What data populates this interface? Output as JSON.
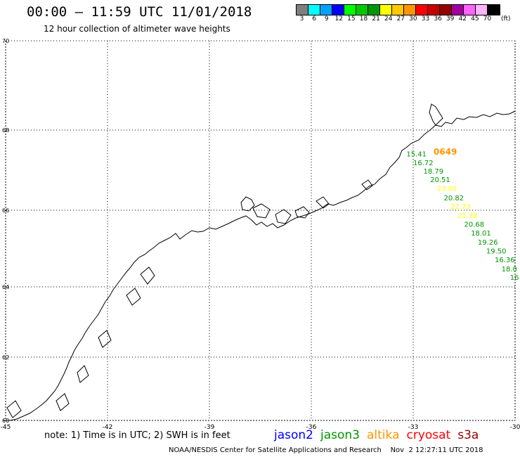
{
  "header": {
    "title": "00:00 – 11:59 UTC 11/01/2018",
    "subtitle": "12 hour collection of altimeter wave heights"
  },
  "legend": {
    "unit": "(ft)",
    "bins": [
      {
        "label": "3",
        "color": "#7f7f7f"
      },
      {
        "label": "6",
        "color": "#00ffff"
      },
      {
        "label": "9",
        "color": "#00a0ff"
      },
      {
        "label": "12",
        "color": "#0000ff"
      },
      {
        "label": "15",
        "color": "#00ff00"
      },
      {
        "label": "18",
        "color": "#00c800"
      },
      {
        "label": "21",
        "color": "#009600"
      },
      {
        "label": "24",
        "color": "#ffff00"
      },
      {
        "label": "27",
        "color": "#ffc800"
      },
      {
        "label": "30",
        "color": "#ff9600"
      },
      {
        "label": "33",
        "color": "#ff0000"
      },
      {
        "label": "36",
        "color": "#c80000"
      },
      {
        "label": "39",
        "color": "#960000"
      },
      {
        "label": "42",
        "color": "#a000a0"
      },
      {
        "label": "45",
        "color": "#ff64ff"
      },
      {
        "label": "70",
        "color": "#ffb4ff"
      },
      {
        "label": "",
        "color": "#000000"
      }
    ]
  },
  "map": {
    "lon_range": [
      -45,
      -30
    ],
    "lat_range": [
      60,
      70
    ],
    "lon_ticks": [
      "-45",
      "-42",
      "-39",
      "-36",
      "-33",
      "-30"
    ],
    "lat_ticks": [
      "60",
      "62",
      "64",
      "66",
      "68",
      "70"
    ],
    "time_label": {
      "text": "0649",
      "color": "#ff9600",
      "lon": -32.4,
      "lat": 67.0
    },
    "observations": [
      {
        "text": "15.41",
        "color": "#009600",
        "lon": -33.2,
        "lat": 66.95
      },
      {
        "text": "16.72",
        "color": "#009600",
        "lon": -33.0,
        "lat": 66.72
      },
      {
        "text": "18.79",
        "color": "#009600",
        "lon": -32.7,
        "lat": 66.5
      },
      {
        "text": "20.51",
        "color": "#009600",
        "lon": -32.5,
        "lat": 66.28
      },
      {
        "text": "23.01",
        "color": "#ffff00",
        "lon": -32.3,
        "lat": 66.05
      },
      {
        "text": "20.82",
        "color": "#009600",
        "lon": -32.1,
        "lat": 65.8
      },
      {
        "text": "22.73",
        "color": "#ffff00",
        "lon": -31.9,
        "lat": 65.57
      },
      {
        "text": "21.38",
        "color": "#ffff00",
        "lon": -31.7,
        "lat": 65.33
      },
      {
        "text": "20.68",
        "color": "#009600",
        "lon": -31.5,
        "lat": 65.1
      },
      {
        "text": "18.01",
        "color": "#009600",
        "lon": -31.3,
        "lat": 64.87
      },
      {
        "text": "19.26",
        "color": "#009600",
        "lon": -31.1,
        "lat": 64.63
      },
      {
        "text": "19.50",
        "color": "#009600",
        "lon": -30.85,
        "lat": 64.4
      },
      {
        "text": "16.36",
        "color": "#009600",
        "lon": -30.6,
        "lat": 64.17
      },
      {
        "text": "18.0",
        "color": "#009600",
        "lon": -30.4,
        "lat": 63.93
      },
      {
        "text": "16",
        "color": "#009600",
        "lon": -30.15,
        "lat": 63.7
      }
    ]
  },
  "footer": {
    "note": "note:  1) Time is in UTC;  2) SWH is in feet",
    "satellites": [
      {
        "name": "jason2",
        "color": "#0000ff"
      },
      {
        "name": "jason3",
        "color": "#009600"
      },
      {
        "name": "altika",
        "color": "#ff9600"
      },
      {
        "name": "cryosat",
        "color": "#ff0000"
      },
      {
        "name": "s3a",
        "color": "#960000"
      }
    ],
    "credit": "NOAA/NESDIS Center for Satellite Applications and Research    Nov  2 12:27:11 UTC 2018"
  }
}
